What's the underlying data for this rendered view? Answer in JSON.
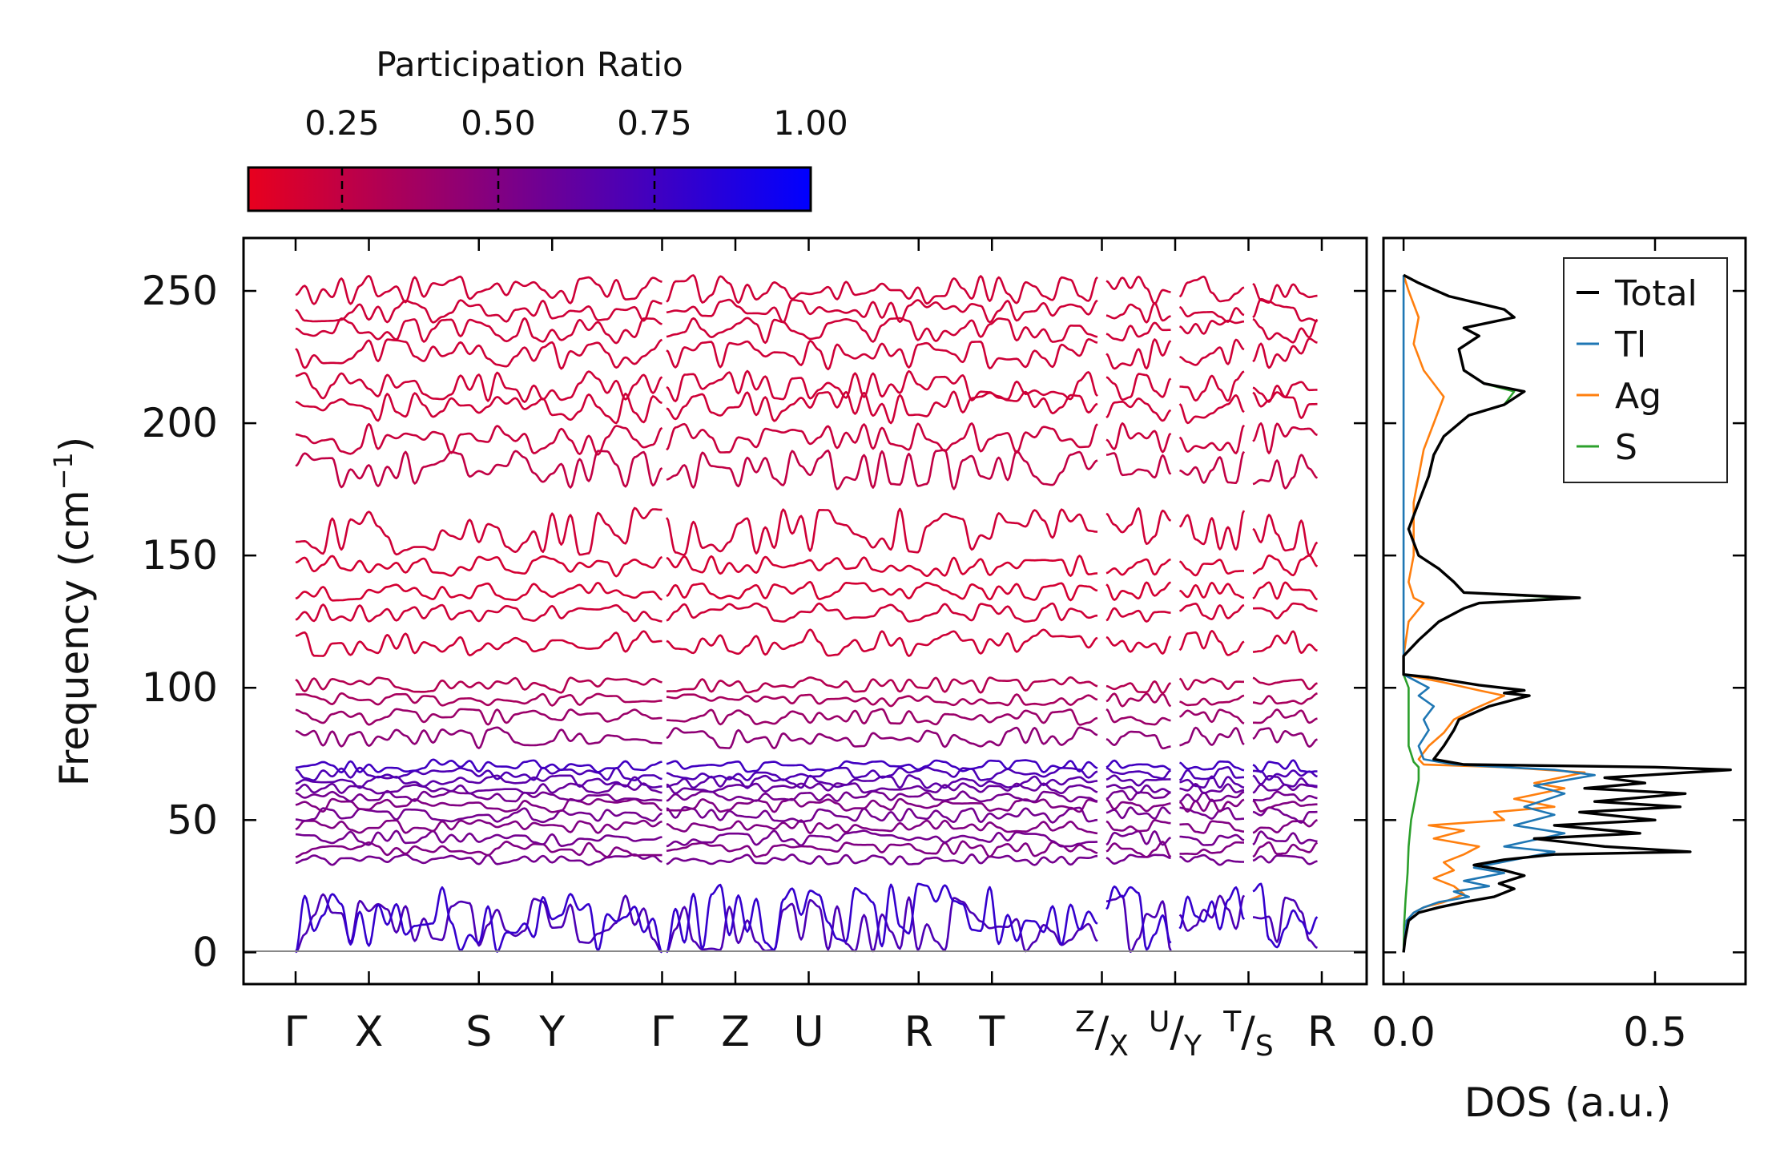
{
  "chart_data": [
    {
      "type": "line",
      "subtype": "phonon-band-structure",
      "ylabel_main": "Frequency (cm",
      "ylabel_sup": "−1",
      "ylabel_close": ")",
      "ylim": [
        -12,
        270
      ],
      "yticks": [
        "0",
        "50",
        "100",
        "150",
        "200",
        "250"
      ],
      "ytick_values": [
        0,
        50,
        100,
        150,
        200,
        250
      ],
      "kpoint_labels": [
        {
          "label": "Γ",
          "pos": 0
        },
        {
          "label": "X",
          "pos": 1
        },
        {
          "label": "S",
          "pos": 2.5
        },
        {
          "label": "Y",
          "pos": 3.5
        },
        {
          "label": "Γ",
          "pos": 5
        },
        {
          "label": "Z",
          "pos": 6
        },
        {
          "label": "U",
          "pos": 7
        },
        {
          "label": "R",
          "pos": 8.5
        },
        {
          "label": "T",
          "pos": 9.5
        },
        {
          "label_sup": "Z",
          "label_sep": "/",
          "label_sub": "X",
          "pos": 11
        },
        {
          "label_sup": "U",
          "label_sep": "/",
          "label_sub": "Y",
          "pos": 12
        },
        {
          "label_sup": "T",
          "label_sep": "/",
          "label_sub": "S",
          "pos": 13
        },
        {
          "label": "R",
          "pos": 14
        }
      ],
      "segments": [
        {
          "from": 0,
          "to": 5
        },
        {
          "from": 5,
          "to": 11
        },
        {
          "from": 11,
          "to": 12
        },
        {
          "from": 12,
          "to": 13
        },
        {
          "from": 13,
          "to": 14
        }
      ],
      "acoustic_Gamma_positions": [
        0,
        5
      ],
      "colorbar": {
        "title": "Participation Ratio",
        "ticks": [
          "0.25",
          "0.50",
          "0.75",
          "1.00"
        ],
        "tick_values": [
          0.25,
          0.5,
          0.75,
          1.0
        ],
        "range": [
          0.1,
          1.0
        ],
        "color_low": "#e8001e",
        "color_high": "#0000ff"
      }
    },
    {
      "type": "line",
      "subtype": "density-of-states",
      "xlabel": "DOS (a.u.)",
      "xticks": [
        "0.0",
        "0.5"
      ],
      "xtick_values": [
        0.0,
        0.5
      ],
      "xlim": [
        -0.04,
        0.68
      ],
      "ylim": [
        -12,
        270
      ],
      "legend_position": "top-right",
      "series": [
        {
          "name": "Total",
          "color": "#000000",
          "points": [
            [
              0,
              0
            ],
            [
              0.003,
              5
            ],
            [
              0.01,
              12
            ],
            [
              0.03,
              15
            ],
            [
              0.07,
              17
            ],
            [
              0.12,
              19
            ],
            [
              0.18,
              21
            ],
            [
              0.22,
              24
            ],
            [
              0.19,
              26
            ],
            [
              0.24,
              29
            ],
            [
              0.2,
              31
            ],
            [
              0.14,
              33
            ],
            [
              0.2,
              35
            ],
            [
              0.3,
              37
            ],
            [
              0.57,
              38
            ],
            [
              0.4,
              40
            ],
            [
              0.26,
              43
            ],
            [
              0.47,
              45
            ],
            [
              0.3,
              48
            ],
            [
              0.5,
              50
            ],
            [
              0.35,
              53
            ],
            [
              0.55,
              55
            ],
            [
              0.38,
              57
            ],
            [
              0.56,
              60
            ],
            [
              0.36,
              62
            ],
            [
              0.48,
              64
            ],
            [
              0.4,
              66
            ],
            [
              0.65,
              69
            ],
            [
              0.5,
              70
            ],
            [
              0.12,
              71
            ],
            [
              0.06,
              73
            ],
            [
              0.08,
              78
            ],
            [
              0.1,
              84
            ],
            [
              0.11,
              88
            ],
            [
              0.17,
              93
            ],
            [
              0.25,
              97
            ],
            [
              0.2,
              98
            ],
            [
              0.24,
              99
            ],
            [
              0.15,
              101
            ],
            [
              0.05,
              104
            ],
            [
              0.0,
              105
            ],
            [
              0.0,
              112
            ],
            [
              0.03,
              118
            ],
            [
              0.07,
              125
            ],
            [
              0.12,
              130
            ],
            [
              0.15,
              132
            ],
            [
              0.35,
              134
            ],
            [
              0.12,
              136
            ],
            [
              0.1,
              140
            ],
            [
              0.07,
              145
            ],
            [
              0.03,
              150
            ],
            [
              0.01,
              160
            ],
            [
              0.03,
              170
            ],
            [
              0.05,
              180
            ],
            [
              0.06,
              188
            ],
            [
              0.08,
              195
            ],
            [
              0.13,
              203
            ],
            [
              0.2,
              207
            ],
            [
              0.24,
              212
            ],
            [
              0.16,
              215
            ],
            [
              0.12,
              220
            ],
            [
              0.11,
              228
            ],
            [
              0.15,
              233
            ],
            [
              0.12,
              236
            ],
            [
              0.22,
              240
            ],
            [
              0.2,
              243
            ],
            [
              0.09,
              248
            ],
            [
              0.03,
              253
            ],
            [
              0.0,
              256
            ]
          ]
        },
        {
          "name": "Tl",
          "color": "#1f77b4",
          "points": [
            [
              0,
              0
            ],
            [
              0.002,
              5
            ],
            [
              0.006,
              12
            ],
            [
              0.02,
              15
            ],
            [
              0.04,
              17
            ],
            [
              0.07,
              19
            ],
            [
              0.13,
              21
            ],
            [
              0.1,
              23
            ],
            [
              0.17,
              25
            ],
            [
              0.12,
              27
            ],
            [
              0.2,
              30
            ],
            [
              0.14,
              32
            ],
            [
              0.22,
              35
            ],
            [
              0.3,
              38
            ],
            [
              0.2,
              40
            ],
            [
              0.32,
              45
            ],
            [
              0.22,
              48
            ],
            [
              0.3,
              52
            ],
            [
              0.24,
              55
            ],
            [
              0.32,
              60
            ],
            [
              0.26,
              63
            ],
            [
              0.38,
              67
            ],
            [
              0.3,
              69
            ],
            [
              0.1,
              71
            ],
            [
              0.04,
              73
            ],
            [
              0.03,
              78
            ],
            [
              0.05,
              84
            ],
            [
              0.04,
              88
            ],
            [
              0.06,
              93
            ],
            [
              0.03,
              97
            ],
            [
              0.05,
              100
            ],
            [
              0.02,
              103
            ],
            [
              0.0,
              105
            ],
            [
              0.0,
              256
            ]
          ]
        },
        {
          "name": "Ag",
          "color": "#ff7f0e",
          "points": [
            [
              0,
              0
            ],
            [
              0.002,
              5
            ],
            [
              0.006,
              12
            ],
            [
              0.02,
              15
            ],
            [
              0.04,
              17
            ],
            [
              0.08,
              19
            ],
            [
              0.12,
              22
            ],
            [
              0.1,
              25
            ],
            [
              0.06,
              28
            ],
            [
              0.1,
              31
            ],
            [
              0.08,
              34
            ],
            [
              0.12,
              37
            ],
            [
              0.15,
              40
            ],
            [
              0.06,
              43
            ],
            [
              0.12,
              46
            ],
            [
              0.05,
              48
            ],
            [
              0.2,
              50
            ],
            [
              0.18,
              53
            ],
            [
              0.3,
              55
            ],
            [
              0.22,
              58
            ],
            [
              0.32,
              62
            ],
            [
              0.26,
              64
            ],
            [
              0.36,
              68
            ],
            [
              0.2,
              70
            ],
            [
              0.04,
              71
            ],
            [
              0.03,
              73
            ],
            [
              0.05,
              78
            ],
            [
              0.08,
              83
            ],
            [
              0.1,
              88
            ],
            [
              0.14,
              92
            ],
            [
              0.2,
              97
            ],
            [
              0.15,
              99
            ],
            [
              0.08,
              102
            ],
            [
              0.0,
              105
            ],
            [
              0.0,
              112
            ],
            [
              0.01,
              125
            ],
            [
              0.04,
              132
            ],
            [
              0.02,
              134
            ],
            [
              0.01,
              140
            ],
            [
              0.02,
              150
            ],
            [
              0.02,
              170
            ],
            [
              0.04,
              190
            ],
            [
              0.06,
              200
            ],
            [
              0.08,
              210
            ],
            [
              0.04,
              220
            ],
            [
              0.02,
              230
            ],
            [
              0.03,
              240
            ],
            [
              0.01,
              250
            ],
            [
              0.0,
              256
            ]
          ]
        },
        {
          "name": "S",
          "color": "#2ca02c",
          "points": [
            [
              0,
              0
            ],
            [
              0.001,
              10
            ],
            [
              0.004,
              20
            ],
            [
              0.008,
              30
            ],
            [
              0.01,
              40
            ],
            [
              0.015,
              50
            ],
            [
              0.02,
              55
            ],
            [
              0.025,
              60
            ],
            [
              0.03,
              65
            ],
            [
              0.03,
              70
            ],
            [
              0.02,
              72
            ],
            [
              0.01,
              78
            ],
            [
              0.01,
              90
            ],
            [
              0.01,
              100
            ],
            [
              0.0,
              105
            ],
            [
              0.0,
              112
            ],
            [
              0.03,
              118
            ],
            [
              0.07,
              125
            ],
            [
              0.12,
              130
            ],
            [
              0.15,
              132
            ],
            [
              0.32,
              134
            ],
            [
              0.12,
              136
            ],
            [
              0.1,
              140
            ],
            [
              0.07,
              145
            ],
            [
              0.03,
              150
            ],
            [
              0.01,
              160
            ],
            [
              0.03,
              170
            ],
            [
              0.05,
              180
            ],
            [
              0.06,
              188
            ],
            [
              0.08,
              195
            ],
            [
              0.13,
              203
            ],
            [
              0.2,
              207
            ],
            [
              0.22,
              212
            ],
            [
              0.16,
              215
            ],
            [
              0.12,
              220
            ],
            [
              0.11,
              228
            ],
            [
              0.15,
              233
            ],
            [
              0.12,
              236
            ],
            [
              0.22,
              240
            ],
            [
              0.2,
              243
            ],
            [
              0.09,
              248
            ],
            [
              0.03,
              253
            ],
            [
              0.0,
              256
            ]
          ]
        }
      ]
    }
  ]
}
